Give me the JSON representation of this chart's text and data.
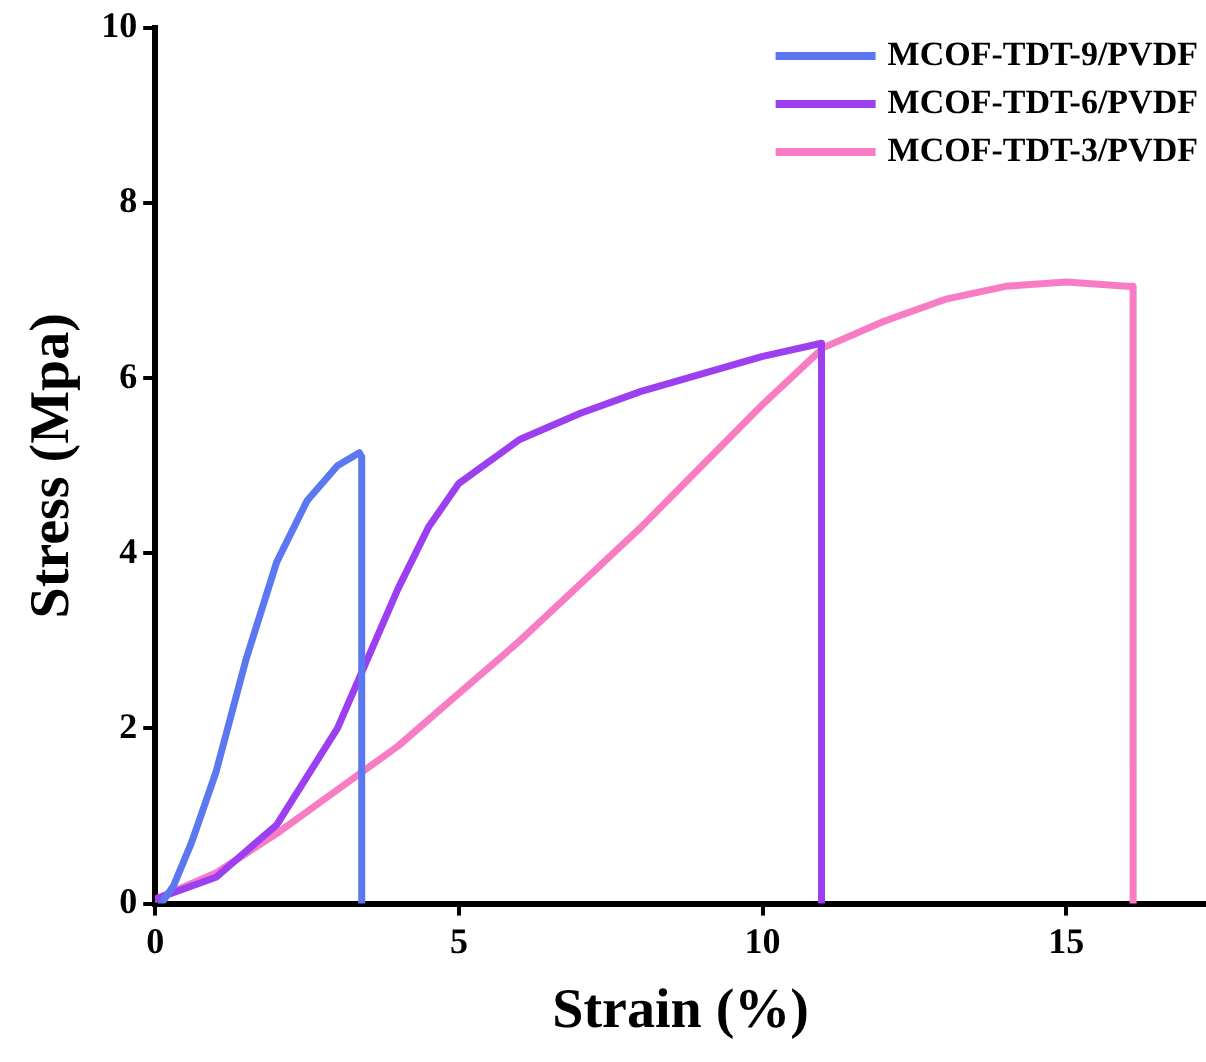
{
  "chart_data": {
    "type": "line",
    "xlabel": "Strain (%)",
    "ylabel": "Stress (Mpa)",
    "xlim": [
      0,
      17.3
    ],
    "xticks": [
      0,
      5,
      10,
      15
    ],
    "ylim": [
      0,
      10
    ],
    "yticks": [
      0,
      2,
      4,
      6,
      8,
      10
    ],
    "grid": false,
    "legend": "top right",
    "marker": "none",
    "line_style": "solid",
    "series": [
      {
        "name": "MCOF-TDT-9/PVDF",
        "color": "#5b78f0",
        "x": [
          0.1,
          0.3,
          0.6,
          1,
          1.5,
          2,
          2.5,
          3,
          3.36,
          3.4,
          3.4
        ],
        "values": [
          0,
          0.2,
          0.7,
          1.5,
          2.8,
          3.9,
          4.6,
          5.0,
          5.15,
          5.1,
          0
        ]
      },
      {
        "name": "MCOF-TDT-6/PVDF",
        "color": "#9b3ff0",
        "x": [
          0,
          1,
          2,
          3,
          3.5,
          4,
          4.5,
          5,
          6,
          7,
          8,
          9,
          10,
          10.97,
          10.97
        ],
        "values": [
          0.05,
          0.3,
          0.9,
          2.0,
          2.8,
          3.6,
          4.3,
          4.8,
          5.3,
          5.6,
          5.85,
          6.05,
          6.25,
          6.4,
          0
        ]
      },
      {
        "name": "MCOF-TDT-3/PVDF",
        "color": "#f77cc4",
        "x": [
          0,
          1,
          2,
          3,
          4,
          5,
          6,
          7,
          8,
          9,
          10,
          11,
          12,
          13,
          14,
          15,
          16,
          16.1,
          16.1
        ],
        "values": [
          0.05,
          0.35,
          0.8,
          1.3,
          1.8,
          2.4,
          3.0,
          3.65,
          4.3,
          5.0,
          5.7,
          6.35,
          6.65,
          6.9,
          7.05,
          7.1,
          7.05,
          7.05,
          0
        ]
      }
    ]
  }
}
